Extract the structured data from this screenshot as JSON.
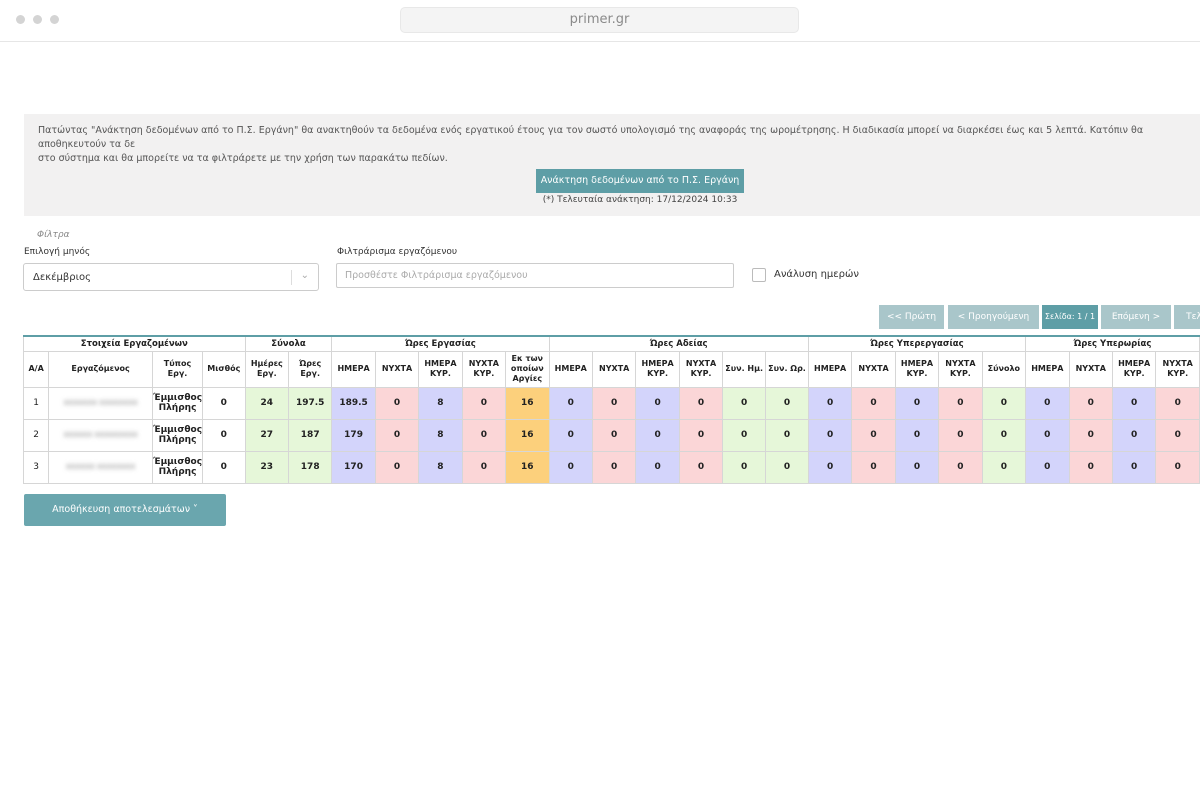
{
  "browser": {
    "url": "primer.gr"
  },
  "info": {
    "text": "Πατώντας \"Ανάκτηση δεδομένων από το Π.Σ. Εργάνη\" θα ανακτηθούν τα δεδομένα ενός εργατικού έτους για τον σωστό υπολογισμό της αναφοράς της ωρομέτρησης. Η διαδικασία μπορεί να διαρκέσει έως και 5 λεπτά. Κατόπιν θα αποθηκευτούν τα δε\nστο σύστημα και θα μπορείτε να τα φιλτράρετε με την χρήση των παρακάτω πεδίων.",
    "fetch_button": "Ανάκτηση δεδομένων από το Π.Σ. Εργάνη",
    "last_fetch": "(*) Τελευταία ανάκτηση: 17/12/2024 10:33"
  },
  "filters": {
    "title": "Φίλτρα",
    "month_label": "Επιλογή μηνός",
    "month_value": "Δεκέμβριος",
    "employee_label": "Φιλτράρισμα εργαζόμενου",
    "employee_placeholder": "Προσθέστε Φιλτράρισμα εργαζόμενου",
    "days_analysis_label": "Ανάλυση ημερών"
  },
  "pager": {
    "first": "<< Πρώτη",
    "prev": "< Προηγούμενη",
    "page": "Σελίδα: 1 / 1",
    "next": "Επόμενη >",
    "last": "Τελ"
  },
  "table": {
    "groups": [
      "Στοιχεία Εργαζομένων",
      "Σύνολα",
      "Ώρες Εργασίας",
      "Ώρες Αδείας",
      "Ώρες Υπερεργασίας",
      "Ώρες Υπερωρίας"
    ],
    "columns": [
      "Α/Α",
      "Εργαζόμενος",
      "Τύπος Εργ.",
      "Μισθός",
      "Ημέρες Εργ.",
      "Ώρες Εργ.",
      "ΗΜΕΡΑ",
      "ΝΥΧΤΑ",
      "ΗΜΕΡΑ ΚΥΡ.",
      "ΝΥΧΤΑ ΚΥΡ.",
      "Εκ των οποίων Αργίες",
      "ΗΜΕΡΑ",
      "ΝΥΧΤΑ",
      "ΗΜΕΡΑ ΚΥΡ.",
      "ΝΥΧΤΑ ΚΥΡ.",
      "Συν. Ημ.",
      "Συν. Ωρ.",
      "ΗΜΕΡΑ",
      "ΝΥΧΤΑ",
      "ΗΜΕΡΑ ΚΥΡ.",
      "ΝΥΧΤΑ ΚΥΡ.",
      "Σύνολο",
      "ΗΜΕΡΑ",
      "ΝΥΧΤΑ",
      "ΗΜΕΡΑ ΚΥΡ.",
      "ΝΥΧΤΑ ΚΥΡ."
    ],
    "rows": [
      {
        "aa": "1",
        "employee": "ΧΧΧΧΧΧΧ ΧΧΧΧΧΧΧΧ",
        "type": "Έμμισθος Πλήρης",
        "salary": "0",
        "days": "24",
        "hours": "197.5",
        "work": [
          "189.5",
          "0",
          "8",
          "0",
          "16"
        ],
        "leave": [
          "0",
          "0",
          "0",
          "0",
          "0",
          "0"
        ],
        "overwork": [
          "0",
          "0",
          "0",
          "0",
          "0"
        ],
        "overtime": [
          "0",
          "0",
          "0",
          "0"
        ]
      },
      {
        "aa": "2",
        "employee": "ΧΧΧΧΧΧ ΧΧΧΧΧΧΧΧΧ",
        "type": "Έμμισθος Πλήρης",
        "salary": "0",
        "days": "27",
        "hours": "187",
        "work": [
          "179",
          "0",
          "8",
          "0",
          "16"
        ],
        "leave": [
          "0",
          "0",
          "0",
          "0",
          "0",
          "0"
        ],
        "overwork": [
          "0",
          "0",
          "0",
          "0",
          "0"
        ],
        "overtime": [
          "0",
          "0",
          "0",
          "0"
        ]
      },
      {
        "aa": "3",
        "employee": "ΧΧΧΧΧΧ ΧΧΧΧΧΧΧΧ",
        "type": "Έμμισθος Πλήρης",
        "salary": "0",
        "days": "23",
        "hours": "178",
        "work": [
          "170",
          "0",
          "8",
          "0",
          "16"
        ],
        "leave": [
          "0",
          "0",
          "0",
          "0",
          "0",
          "0"
        ],
        "overwork": [
          "0",
          "0",
          "0",
          "0",
          "0"
        ],
        "overtime": [
          "0",
          "0",
          "0",
          "0"
        ]
      }
    ]
  },
  "save_button": "Αποθήκευση αποτελεσμάτων ˅",
  "colors": {
    "accent": "#5e9ea6",
    "green": "#e6f7d9",
    "purple": "#d3d4fb",
    "pink": "#fbd6d7",
    "orange": "#fcd07c"
  }
}
